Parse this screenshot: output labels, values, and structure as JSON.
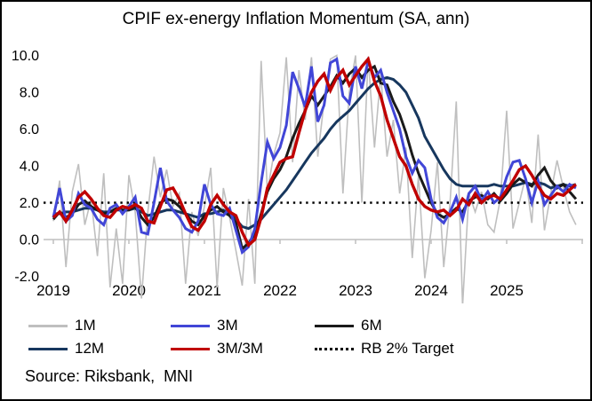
{
  "title": "CPIF ex-energy Inflation Momentum (SA, ann)",
  "source_note": "Source: Riksbank,  MNI",
  "chart_data": {
    "type": "line",
    "title": "CPIF ex-energy Inflation Momentum (SA, ann)",
    "x_frequency": "monthly",
    "x_start": "2019-01",
    "x_end": "2025-12",
    "x_tick_labels": [
      "2019",
      "2020",
      "2021",
      "2022",
      "2023",
      "2024",
      "2025"
    ],
    "y_ticks": [
      "10.0",
      "8.0",
      "6.0",
      "4.0",
      "2.0",
      "0.0",
      "-2.0"
    ],
    "ylim": [
      -2.0,
      10.0
    ],
    "grid": false,
    "legend_position": "bottom",
    "axis_color": "#BFBFBF",
    "target_line": {
      "label": "RB 2% Target",
      "value": 2.0,
      "color": "#000000",
      "style": "dotted"
    },
    "series": [
      {
        "name": "1M",
        "color": "#BFBFBF",
        "line_width": 1.6,
        "values": [
          1.0,
          3.2,
          -1.5,
          2.6,
          4.1,
          0.8,
          2.2,
          -0.9,
          3.6,
          -2.6,
          0.6,
          -2.4,
          3.5,
          1.5,
          -3.2,
          1.5,
          4.5,
          2.3,
          3.8,
          1.8,
          2.5,
          -2.4,
          1.5,
          0.2,
          1.8,
          3.9,
          -2.6,
          2.8,
          1.2,
          -0.6,
          -2.5,
          2.2,
          -2.4,
          9.7,
          2.6,
          4.6,
          5.8,
          9.9,
          4.2,
          9.2,
          6.5,
          9.9,
          4.5,
          7.5,
          9.8,
          10.0,
          2.5,
          8.0,
          10.0,
          2.0,
          9.9,
          5.0,
          9.0,
          4.5,
          6.5,
          2.5,
          5.0,
          -1.0,
          3.5,
          -2.1,
          0.5,
          4.2,
          -1.5,
          2.0,
          7.5,
          -3.6,
          2.5,
          1.5,
          2.6,
          0.8,
          0.4,
          2.2,
          7.0,
          0.6,
          2.0,
          3.4,
          0.9,
          5.7,
          0.5,
          2.5,
          4.3,
          2.8,
          1.5,
          0.8
        ]
      },
      {
        "name": "3M",
        "color": "#4146D7",
        "line_width": 3.0,
        "values": [
          1.2,
          2.8,
          1.0,
          1.3,
          2.5,
          1.9,
          1.7,
          1.1,
          0.8,
          1.7,
          1.9,
          1.4,
          1.8,
          2.3,
          0.4,
          0.3,
          2.0,
          3.9,
          2.1,
          1.6,
          1.2,
          0.6,
          0.4,
          1.0,
          3.0,
          1.9,
          1.4,
          1.3,
          1.7,
          0.5,
          -0.7,
          -0.4,
          0.6,
          3.1,
          5.3,
          4.4,
          5.0,
          6.2,
          9.1,
          8.2,
          7.2,
          9.4,
          6.4,
          7.3,
          9.6,
          9.8,
          7.8,
          7.4,
          9.4,
          8.2,
          9.7,
          8.8,
          9.2,
          8.0,
          7.0,
          6.0,
          4.5,
          3.6,
          4.3,
          3.9,
          2.2,
          1.2,
          0.9,
          1.5,
          2.3,
          1.1,
          2.5,
          2.9,
          2.1,
          2.6,
          2.0,
          2.3,
          3.4,
          4.2,
          4.3,
          3.3,
          2.0,
          3.2,
          1.9,
          2.4,
          2.9,
          2.6,
          3.0,
          2.8
        ]
      },
      {
        "name": "6M",
        "color": "#1A1A1A",
        "line_width": 3.0,
        "values": [
          1.1,
          1.5,
          1.2,
          1.4,
          1.9,
          2.1,
          1.8,
          1.6,
          1.4,
          1.5,
          1.7,
          1.6,
          1.6,
          1.8,
          1.2,
          0.8,
          1.2,
          2.0,
          2.2,
          2.1,
          1.8,
          1.4,
          1.0,
          0.8,
          1.3,
          1.6,
          1.8,
          1.5,
          1.3,
          0.9,
          -0.5,
          -0.2,
          0.3,
          1.4,
          2.6,
          3.3,
          3.8,
          4.5,
          5.5,
          6.3,
          7.0,
          7.8,
          7.3,
          7.8,
          8.3,
          8.9,
          8.5,
          9.0,
          9.3,
          8.8,
          9.2,
          9.4,
          8.5,
          8.4,
          7.5,
          6.8,
          5.8,
          4.6,
          3.6,
          2.8,
          2.0,
          1.4,
          1.2,
          1.4,
          1.7,
          1.5,
          2.1,
          2.3,
          2.4,
          2.2,
          2.5,
          2.1,
          2.5,
          3.0,
          3.3,
          3.1,
          2.9,
          3.5,
          3.9,
          3.2,
          2.8,
          3.0,
          2.6,
          2.2
        ]
      },
      {
        "name": "12M",
        "color": "#17375E",
        "line_width": 3.0,
        "values": [
          1.4,
          1.4,
          1.5,
          1.5,
          1.6,
          1.7,
          1.7,
          1.6,
          1.5,
          1.5,
          1.6,
          1.6,
          1.6,
          1.7,
          1.5,
          1.3,
          1.4,
          1.5,
          1.6,
          1.6,
          1.5,
          1.4,
          1.3,
          1.2,
          1.4,
          1.4,
          1.5,
          1.6,
          1.4,
          1.1,
          0.7,
          0.6,
          0.8,
          1.1,
          1.5,
          1.9,
          2.3,
          2.7,
          3.2,
          3.7,
          4.2,
          4.7,
          5.1,
          5.5,
          6.0,
          6.4,
          6.7,
          7.0,
          7.4,
          7.8,
          8.2,
          8.5,
          8.7,
          8.8,
          8.7,
          8.4,
          8.0,
          7.3,
          6.6,
          5.6,
          5.0,
          4.4,
          3.8,
          3.3,
          3.0,
          2.9,
          2.9,
          2.9,
          2.9,
          2.9,
          3.0,
          2.9,
          2.9,
          2.9,
          3.0,
          3.1,
          3.0,
          3.1,
          3.0,
          2.8,
          2.9,
          3.0,
          2.9,
          3.0
        ]
      },
      {
        "name": "3M/3M",
        "color": "#C00000",
        "line_width": 3.4,
        "values": [
          1.2,
          1.5,
          1.0,
          1.6,
          2.3,
          2.6,
          2.2,
          1.7,
          1.3,
          1.2,
          1.6,
          1.8,
          1.7,
          1.9,
          1.7,
          1.0,
          0.9,
          1.8,
          2.7,
          2.8,
          2.2,
          1.4,
          0.7,
          0.5,
          1.0,
          1.9,
          2.4,
          1.9,
          1.5,
          1.3,
          0.4,
          -0.3,
          0.0,
          1.2,
          2.8,
          3.5,
          4.2,
          4.4,
          4.5,
          5.8,
          7.0,
          8.0,
          8.6,
          9.0,
          8.1,
          8.8,
          9.2,
          8.4,
          8.9,
          9.4,
          9.8,
          8.6,
          7.8,
          6.5,
          5.5,
          4.5,
          4.0,
          3.0,
          2.2,
          1.8,
          1.6,
          1.5,
          1.6,
          1.3,
          1.6,
          2.2,
          1.9,
          2.5,
          2.0,
          2.3,
          2.4,
          2.2,
          2.7,
          3.2,
          3.8,
          4.0,
          3.5,
          2.9,
          2.4,
          2.2,
          2.5,
          2.4,
          2.7,
          3.0
        ]
      }
    ],
    "legend": [
      {
        "label": "1M",
        "swatch": "line",
        "color": "#BFBFBF"
      },
      {
        "label": "3M",
        "swatch": "line",
        "color": "#4146D7"
      },
      {
        "label": "6M",
        "swatch": "line",
        "color": "#1A1A1A"
      },
      {
        "label": "12M",
        "swatch": "line",
        "color": "#17375E"
      },
      {
        "label": "3M/3M",
        "swatch": "line",
        "color": "#C00000"
      },
      {
        "label": "RB 2% Target",
        "swatch": "dotted",
        "color": "#000000"
      }
    ]
  }
}
